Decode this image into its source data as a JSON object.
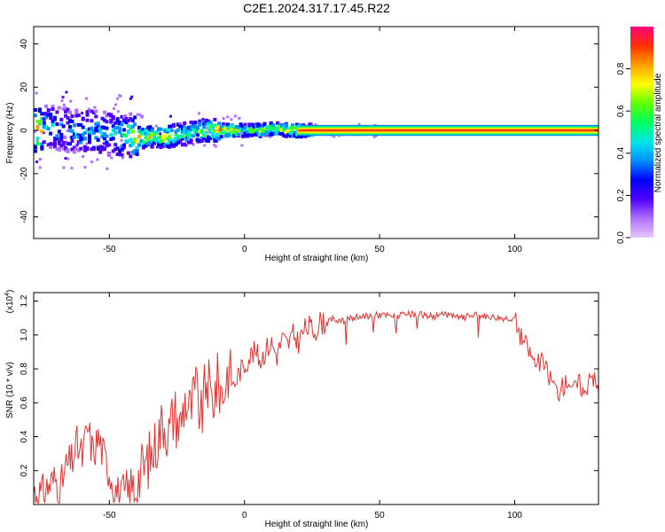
{
  "title": "C2E1.2024.317.17.45.R22",
  "colorbar": {
    "label": "Normalized spectral amplitude",
    "ticks": [
      "0.0",
      "0.2",
      "0.4",
      "0.6",
      "0.8"
    ],
    "tick_values": [
      0.0,
      0.2,
      0.4,
      0.6,
      0.8
    ],
    "colors": [
      "#e6c8ff",
      "#b070ff",
      "#5000ff",
      "#0000ff",
      "#0090ff",
      "#00e6e6",
      "#00ff60",
      "#60ff00",
      "#ffff00",
      "#ffa000",
      "#ff3000",
      "#ff0080"
    ]
  },
  "chart_data": [
    {
      "type": "heatmap",
      "xlabel": "Height of straight line (km)",
      "ylabel": "Frequency (Hz)",
      "xlim": [
        -78,
        131
      ],
      "ylim": [
        -50,
        48
      ],
      "xticks": [
        -50,
        0,
        50,
        100
      ],
      "yticks": [
        -40,
        -20,
        0,
        20,
        40
      ],
      "grid": false,
      "core_band": [
        {
          "x": -75,
          "y": 2,
          "amp": 0.45
        },
        {
          "x": -70,
          "y": 1,
          "amp": 0.42
        },
        {
          "x": -65,
          "y": 0,
          "amp": 0.45
        },
        {
          "x": -60,
          "y": -1,
          "amp": 0.48
        },
        {
          "x": -55,
          "y": -1,
          "amp": 0.5
        },
        {
          "x": -50,
          "y": -2,
          "amp": 0.48
        },
        {
          "x": -45,
          "y": -2,
          "amp": 0.55
        },
        {
          "x": -40,
          "y": -3,
          "amp": 0.8
        },
        {
          "x": -35,
          "y": -3,
          "amp": 0.75
        },
        {
          "x": -30,
          "y": -3,
          "amp": 0.85
        },
        {
          "x": -25,
          "y": -2,
          "amp": 0.7
        },
        {
          "x": -20,
          "y": -1,
          "amp": 0.6
        },
        {
          "x": -15,
          "y": 0,
          "amp": 0.75
        },
        {
          "x": -10,
          "y": 0,
          "amp": 0.85
        },
        {
          "x": -5,
          "y": 0,
          "amp": 0.9
        },
        {
          "x": 0,
          "y": 0,
          "amp": 0.55
        },
        {
          "x": 5,
          "y": 0,
          "amp": 0.8
        },
        {
          "x": 10,
          "y": 1,
          "amp": 0.75
        },
        {
          "x": 15,
          "y": 0,
          "amp": 0.8
        },
        {
          "x": 20,
          "y": 0,
          "amp": 0.9
        },
        {
          "x": 25,
          "y": 0,
          "amp": 0.95
        },
        {
          "x": 131,
          "y": 0,
          "amp": 0.95
        }
      ]
    },
    {
      "type": "line",
      "xlabel": "Height of straight line (km)",
      "ylabel": "SNR (10 * v/v)",
      "y_scale_label": "(x10",
      "y_scale_exp": "4",
      "y_scale_suffix": ")",
      "xlim": [
        -78,
        131
      ],
      "ylim": [
        0,
        1.25
      ],
      "xticks": [
        -50,
        0,
        50,
        100
      ],
      "yticks": [
        0.2,
        0.4,
        0.6,
        0.8,
        1.0,
        1.2
      ],
      "grid": false,
      "series": [
        {
          "color": "#e8302e",
          "x": [
            -78,
            -75,
            -72,
            -70,
            -68,
            -66,
            -64,
            -62,
            -60,
            -58,
            -56,
            -54,
            -52,
            -50,
            -48,
            -46,
            -44,
            -42,
            -40,
            -38,
            -36,
            -34,
            -32,
            -30,
            -28,
            -26,
            -24,
            -22,
            -20,
            -18,
            -16,
            -14,
            -12,
            -10,
            -8,
            -6,
            -4,
            -2,
            0,
            2,
            4,
            6,
            8,
            10,
            12,
            14,
            16,
            18,
            20,
            22,
            24,
            26,
            28,
            30,
            33,
            36,
            40,
            45,
            50,
            55,
            60,
            65,
            70,
            75,
            80,
            85,
            90,
            95,
            100,
            102,
            104,
            106,
            108,
            110,
            112,
            114,
            116,
            118,
            120,
            122,
            124,
            126,
            128,
            131
          ],
          "y": [
            0.08,
            0.06,
            0.12,
            0.15,
            0.1,
            0.22,
            0.25,
            0.35,
            0.28,
            0.45,
            0.3,
            0.4,
            0.28,
            0.2,
            0.1,
            0.05,
            0.04,
            0.08,
            0.12,
            0.2,
            0.25,
            0.3,
            0.4,
            0.5,
            0.42,
            0.55,
            0.45,
            0.62,
            0.55,
            0.68,
            0.5,
            0.75,
            0.6,
            0.72,
            0.65,
            0.8,
            0.7,
            0.78,
            0.82,
            0.88,
            0.9,
            0.85,
            0.92,
            0.95,
            0.88,
            0.98,
            0.94,
            1.0,
            0.96,
            1.03,
            1.05,
            1.02,
            1.08,
            1.06,
            1.1,
            1.08,
            1.1,
            1.11,
            1.12,
            1.11,
            1.12,
            1.12,
            1.11,
            1.12,
            1.1,
            1.12,
            1.11,
            1.1,
            1.1,
            1.0,
            0.95,
            0.88,
            0.82,
            0.85,
            0.78,
            0.72,
            0.66,
            0.7,
            0.74,
            0.68,
            0.72,
            0.64,
            0.8,
            0.66
          ]
        }
      ]
    }
  ]
}
